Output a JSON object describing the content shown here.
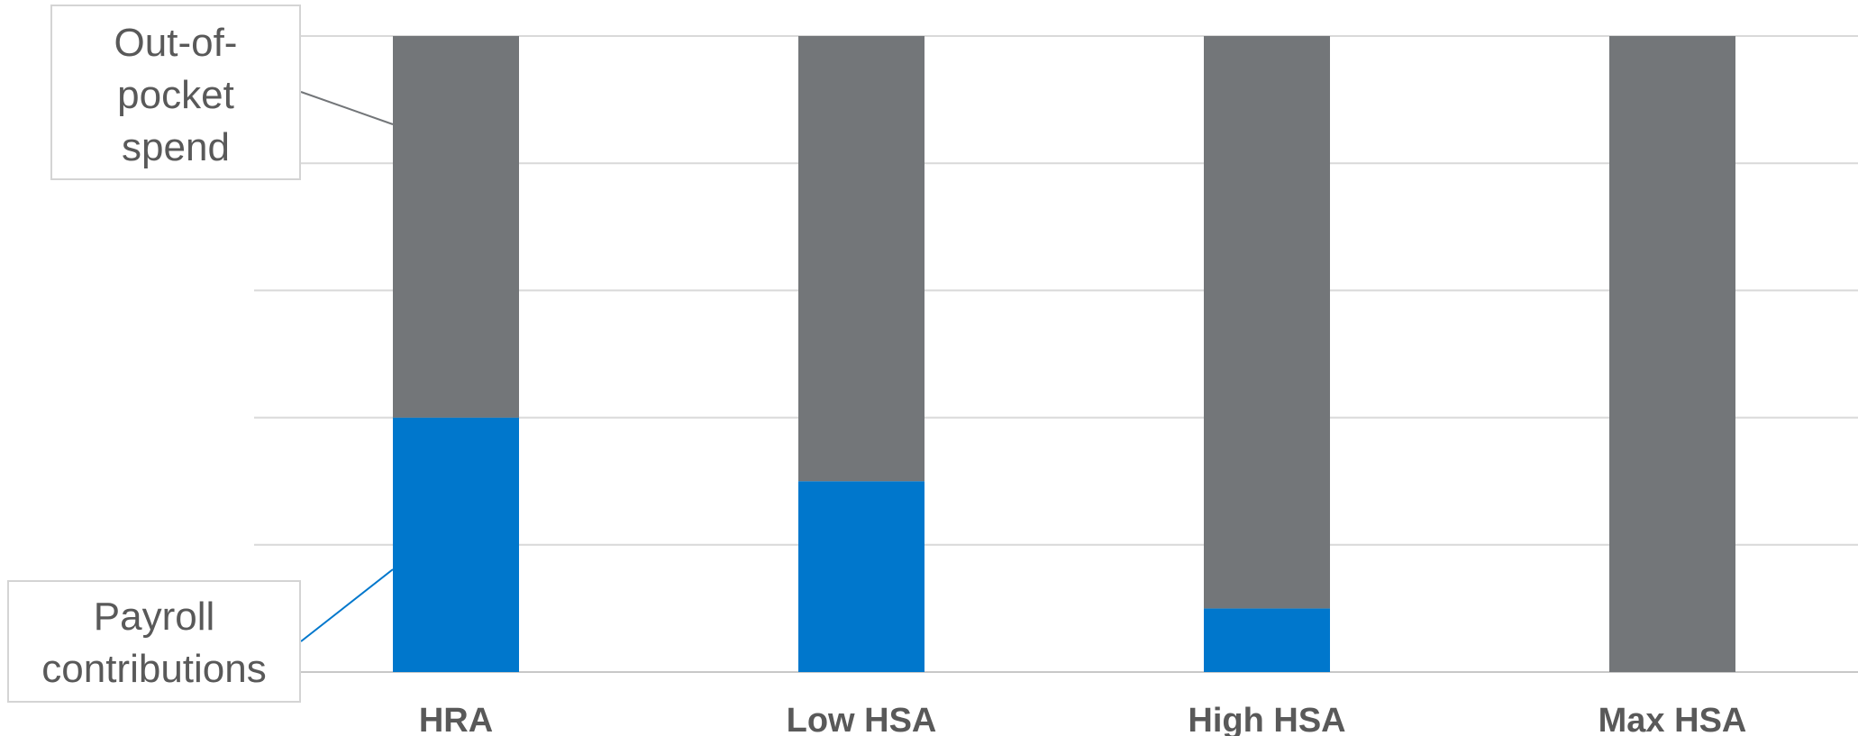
{
  "chart_data": {
    "type": "bar",
    "stacked": true,
    "categories": [
      "HRA",
      "Low HSA",
      "High HSA",
      "Max HSA"
    ],
    "series": [
      {
        "name": "Payroll contributions",
        "color": "#0077CC",
        "values": [
          40,
          30,
          10,
          0
        ]
      },
      {
        "name": "Out-of-pocket spend",
        "color": "#737679",
        "values": [
          60,
          70,
          90,
          100
        ]
      }
    ],
    "ylim": [
      0,
      100
    ],
    "grid": true,
    "y_axis_labels": false,
    "legend": "callouts-left"
  },
  "callouts": {
    "oop_lines": [
      "Out-of-",
      "pocket",
      "spend"
    ],
    "payroll_lines": [
      "Payroll",
      "contributions"
    ]
  }
}
